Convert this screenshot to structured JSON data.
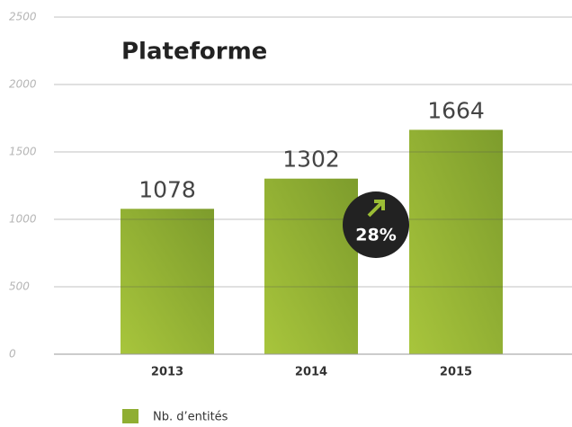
{
  "chart_data": {
    "type": "bar",
    "title": "Plateforme",
    "categories": [
      "2013",
      "2014",
      "2015"
    ],
    "series": [
      {
        "name": "Nb. d’entités",
        "color": "#8fae32",
        "values": [
          1078,
          1302,
          1664
        ]
      }
    ],
    "ylim": [
      0,
      2500
    ],
    "yticks": [
      0,
      500,
      1000,
      1500,
      2000,
      2500
    ],
    "grid": true,
    "annotation": "28%",
    "legend": "bottom-left"
  }
}
